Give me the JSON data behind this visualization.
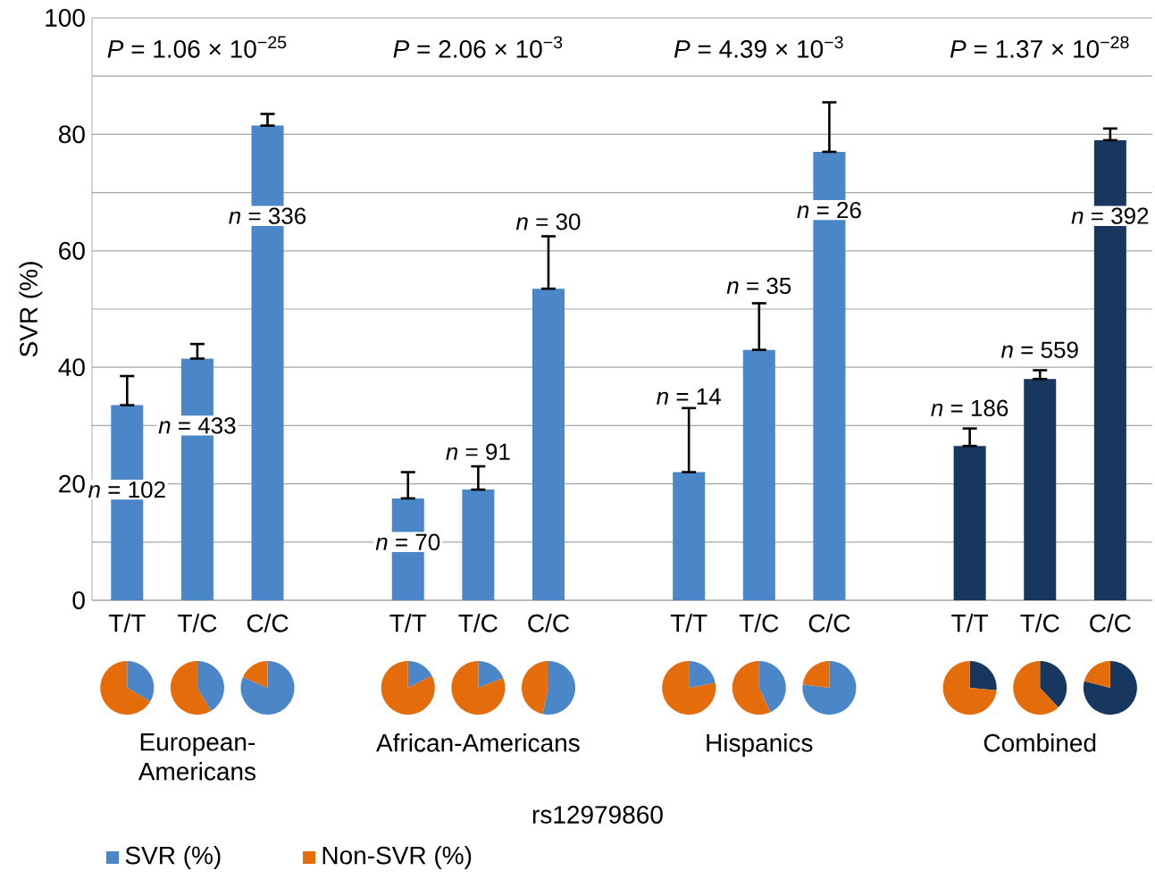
{
  "chart_data": [
    {
      "type": "bar",
      "ylabel": "SVR (%)",
      "xlabel": "rs12979860",
      "categories": [
        "T/T",
        "T/C",
        "C/C",
        null,
        "T/T",
        "T/C",
        "C/C",
        null,
        "T/T",
        "T/C",
        "C/C",
        null,
        "T/T",
        "T/C",
        "C/C"
      ],
      "values": [
        33.5,
        41.5,
        81.5,
        null,
        17.5,
        19,
        53.5,
        null,
        22,
        43,
        77,
        null,
        26.5,
        38,
        79
      ],
      "colors": [
        "#4a86c8",
        "#4a86c8",
        "#4a86c8",
        null,
        "#4a86c8",
        "#4a86c8",
        "#4a86c8",
        null,
        "#4a86c8",
        "#4a86c8",
        "#4a86c8",
        null,
        "#17375e",
        "#17375e",
        "#17375e"
      ],
      "errors": [
        [
          33.5,
          38.5
        ],
        [
          41.5,
          44
        ],
        [
          81.5,
          83.5
        ],
        null,
        [
          17.5,
          22
        ],
        [
          19,
          23
        ],
        [
          53.5,
          62.5
        ],
        null,
        [
          22,
          33
        ],
        [
          43,
          51
        ],
        [
          77,
          85.5
        ],
        null,
        [
          26.5,
          29.5
        ],
        [
          38,
          39.5
        ],
        [
          79,
          81
        ]
      ],
      "ylim": [
        0,
        100
      ],
      "yticks": [
        0,
        {
          "value": 10,
          "label": null
        },
        20,
        {
          "value": 30,
          "label": null
        },
        40,
        {
          "value": 50,
          "label": null
        },
        60,
        {
          "value": 70,
          "label": null
        },
        80,
        {
          "value": 90,
          "label": null
        },
        100
      ],
      "grid": "y",
      "annotations": [
        "*P* = 1.06 × 10$^{−25}$",
        "*P* = 2.06 × 10$^{−3}$",
        "*P* = 4.39 × 10$^{−3}$",
        "*P* = 1.37 × 10$^{−28}$",
        "*n* = 102",
        "*n* = 433",
        "*n* = 336",
        "*n* = 70",
        "*n* = 91",
        "*n* = 30",
        "*n* = 14",
        "*n* = 35",
        "*n* = 26",
        "*n* = 186",
        "*n* = 559",
        "*n* = 392",
        "European-Americans",
        "African-Americans",
        "Hispanics",
        "Combined"
      ]
    },
    {
      "type": "pie",
      "categories": [
        "SVR (%)",
        "Non-SVR (%)"
      ],
      "values": [
        33.5,
        66.5
      ],
      "colors": [
        "#4a86c8",
        "#e46c0a"
      ],
      "legend": "bottom"
    },
    {
      "type": "pie",
      "categories": [
        null,
        null
      ],
      "values": [
        41.5,
        58.5
      ],
      "colors": [
        "#4a86c8",
        "#e46c0a"
      ]
    },
    {
      "type": "pie",
      "categories": [
        null,
        null
      ],
      "values": [
        81.5,
        18.5
      ],
      "colors": [
        "#4a86c8",
        "#e46c0a"
      ]
    },
    {
      "type": "pie",
      "categories": [
        null,
        null
      ],
      "values": [
        17.5,
        82.5
      ],
      "colors": [
        "#4a86c8",
        "#e46c0a"
      ]
    },
    {
      "type": "pie",
      "categories": [
        null,
        null
      ],
      "values": [
        19,
        81
      ],
      "colors": [
        "#4a86c8",
        "#e46c0a"
      ]
    },
    {
      "type": "pie",
      "categories": [
        null,
        null
      ],
      "values": [
        53.5,
        46.5
      ],
      "colors": [
        "#4a86c8",
        "#e46c0a"
      ]
    },
    {
      "type": "pie",
      "categories": [
        null,
        null
      ],
      "values": [
        22,
        78
      ],
      "colors": [
        "#4a86c8",
        "#e46c0a"
      ]
    },
    {
      "type": "pie",
      "categories": [
        null,
        null
      ],
      "values": [
        43,
        57
      ],
      "colors": [
        "#4a86c8",
        "#e46c0a"
      ]
    },
    {
      "type": "pie",
      "categories": [
        null,
        null
      ],
      "values": [
        77,
        23
      ],
      "colors": [
        "#4a86c8",
        "#e46c0a"
      ]
    },
    {
      "type": "pie",
      "categories": [
        null,
        null
      ],
      "values": [
        26.5,
        73.5
      ],
      "colors": [
        "#17375e",
        "#e46c0a"
      ]
    },
    {
      "type": "pie",
      "categories": [
        null,
        null
      ],
      "values": [
        38,
        62
      ],
      "colors": [
        "#17375e",
        "#e46c0a"
      ]
    },
    {
      "type": "pie",
      "categories": [
        null,
        null
      ],
      "values": [
        79,
        21
      ],
      "colors": [
        "#17375e",
        "#e46c0a"
      ]
    }
  ]
}
